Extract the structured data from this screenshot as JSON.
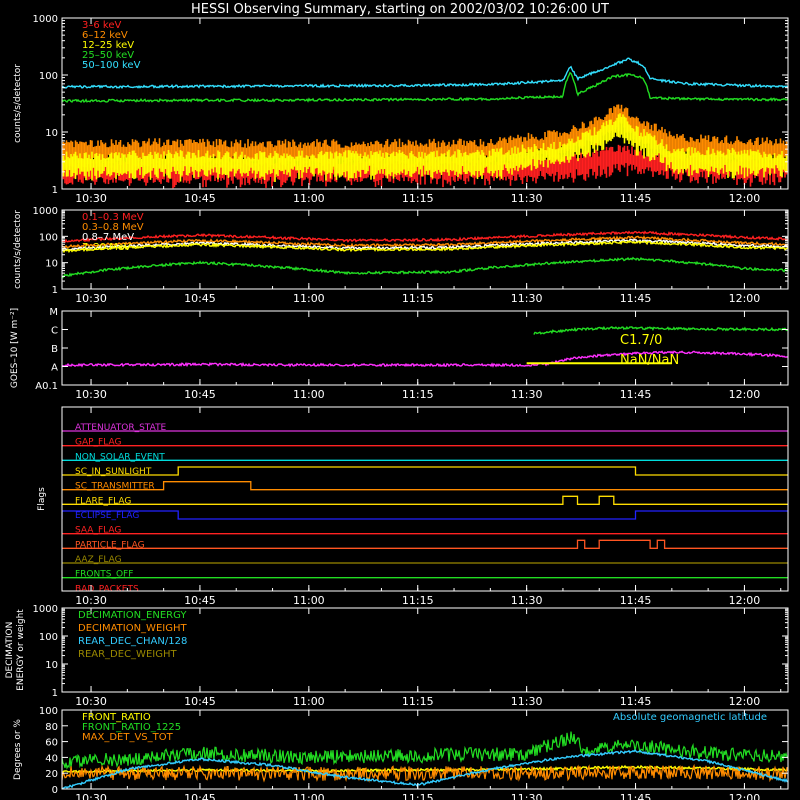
{
  "title": "HESSI Observing Summary, starting on 2002/03/02 10:26:00 UT",
  "time_axis": {
    "start": "10:26",
    "end": "12:06",
    "ticks": [
      "10:30",
      "10:45",
      "11:00",
      "11:15",
      "11:30",
      "11:45",
      "12:00"
    ]
  },
  "chart_data": [
    {
      "type": "line",
      "ylabel": "counts/s/detector",
      "scale": "log",
      "ylim": [
        1,
        1000
      ],
      "yticks": [
        "1",
        "10",
        "100",
        "1000"
      ],
      "legend": "top-left",
      "series": [
        {
          "name": "3–6 keV",
          "color": "#ff2020",
          "style": "band",
          "points": [
            [
              "10:26",
              2.2
            ],
            [
              "10:40",
              2.3
            ],
            [
              "10:55",
              2.2
            ],
            [
              "11:10",
              2.3
            ],
            [
              "11:25",
              2.3
            ],
            [
              "11:35",
              2.6
            ],
            [
              "11:40",
              3.2
            ],
            [
              "11:43",
              3.8
            ],
            [
              "11:47",
              3.0
            ],
            [
              "11:55",
              2.5
            ],
            [
              "12:06",
              2.4
            ]
          ]
        },
        {
          "name": "6–12 keV",
          "color": "#ff8c00",
          "style": "band",
          "points": [
            [
              "10:26",
              4.5
            ],
            [
              "10:40",
              4.8
            ],
            [
              "10:55",
              4.6
            ],
            [
              "11:10",
              4.7
            ],
            [
              "11:25",
              4.8
            ],
            [
              "11:35",
              7.0
            ],
            [
              "11:40",
              12.0
            ],
            [
              "11:43",
              21.0
            ],
            [
              "11:45",
              12.0
            ],
            [
              "11:50",
              6.0
            ],
            [
              "12:06",
              4.8
            ]
          ]
        },
        {
          "name": "12–25 keV",
          "color": "#ffff00",
          "style": "band",
          "points": [
            [
              "10:26",
              2.8
            ],
            [
              "10:40",
              3.0
            ],
            [
              "10:55",
              2.9
            ],
            [
              "11:10",
              3.0
            ],
            [
              "11:25",
              3.1
            ],
            [
              "11:35",
              4.5
            ],
            [
              "11:40",
              8.0
            ],
            [
              "11:43",
              14.0
            ],
            [
              "11:45",
              8.0
            ],
            [
              "11:50",
              3.5
            ],
            [
              "12:06",
              3.0
            ]
          ]
        },
        {
          "name": "25–50 keV",
          "color": "#22dd22",
          "style": "line",
          "points": [
            [
              "10:26",
              35
            ],
            [
              "10:40",
              36
            ],
            [
              "10:55",
              36
            ],
            [
              "11:10",
              37
            ],
            [
              "11:25",
              38
            ],
            [
              "11:35",
              42
            ],
            [
              "11:36",
              115
            ],
            [
              "11:37",
              45
            ],
            [
              "11:40",
              70
            ],
            [
              "11:42",
              95
            ],
            [
              "11:44",
              100
            ],
            [
              "11:46",
              90
            ],
            [
              "11:47",
              40
            ],
            [
              "11:52",
              38
            ],
            [
              "12:06",
              37
            ]
          ]
        },
        {
          "name": "50–100 keV",
          "color": "#33e0ff",
          "style": "line",
          "points": [
            [
              "10:26",
              62
            ],
            [
              "10:40",
              63
            ],
            [
              "10:55",
              64
            ],
            [
              "11:10",
              65
            ],
            [
              "11:25",
              68
            ],
            [
              "11:35",
              80
            ],
            [
              "11:36",
              140
            ],
            [
              "11:37",
              85
            ],
            [
              "11:40",
              120
            ],
            [
              "11:42",
              150
            ],
            [
              "11:44",
              190
            ],
            [
              "11:46",
              150
            ],
            [
              "11:47",
              85
            ],
            [
              "11:52",
              70
            ],
            [
              "12:06",
              62
            ]
          ]
        }
      ]
    },
    {
      "type": "line",
      "ylabel": "counts/s/detector",
      "scale": "log",
      "ylim": [
        1,
        1000
      ],
      "yticks": [
        "1",
        "10",
        "100",
        "1000"
      ],
      "legend": "top-left",
      "series": [
        {
          "name": "0.1–0.3 MeV",
          "color": "#ff2020",
          "style": "line",
          "points": [
            [
              "10:26",
              65
            ],
            [
              "10:45",
              110
            ],
            [
              "11:05",
              70
            ],
            [
              "11:20",
              75
            ],
            [
              "11:45",
              140
            ],
            [
              "12:00",
              90
            ],
            [
              "12:06",
              80
            ]
          ]
        },
        {
          "name": "0.3–0.8 MeV",
          "color": "#ff8c00",
          "style": "line",
          "points": [
            [
              "10:26",
              40
            ],
            [
              "10:45",
              70
            ],
            [
              "11:05",
              45
            ],
            [
              "11:20",
              48
            ],
            [
              "11:45",
              90
            ],
            [
              "12:00",
              55
            ],
            [
              "12:06",
              50
            ]
          ]
        },
        {
          "name": "0.8–7 MeV",
          "color": "#ffffff",
          "style": "line",
          "points": [
            [
              "10:26",
              32
            ],
            [
              "10:45",
              55
            ],
            [
              "11:05",
              36
            ],
            [
              "11:20",
              38
            ],
            [
              "11:45",
              70
            ],
            [
              "12:00",
              45
            ],
            [
              "12:06",
              40
            ]
          ]
        },
        {
          "name": "7–20 MeV",
          "color": "#ffff00",
          "style": "line",
          "points": [
            [
              "10:26",
              28
            ],
            [
              "10:45",
              48
            ],
            [
              "11:05",
              31
            ],
            [
              "11:20",
              33
            ],
            [
              "11:45",
              60
            ],
            [
              "12:00",
              38
            ],
            [
              "12:06",
              34
            ]
          ]
        },
        {
          "name": "",
          "color": "#22dd22",
          "style": "line",
          "points": [
            [
              "10:26",
              3.0
            ],
            [
              "10:45",
              10
            ],
            [
              "11:05",
              4.0
            ],
            [
              "11:20",
              4.5
            ],
            [
              "11:45",
              14
            ],
            [
              "12:00",
              6
            ],
            [
              "12:06",
              5
            ]
          ]
        }
      ]
    },
    {
      "type": "line",
      "ylabel": "GOES–10 [W m⁻²]",
      "scale": "log",
      "ylim": [
        0.1,
        1000
      ],
      "yticks": [
        "A0.1",
        "A",
        "B",
        "C",
        "M"
      ],
      "annotations": [
        "C1.7/0",
        "NaN/NaN"
      ],
      "series": [
        {
          "name": "",
          "color": "#22dd22",
          "style": "line",
          "points": [
            [
              "11:31",
              60
            ],
            [
              "11:37",
              100
            ],
            [
              "11:42",
              125
            ],
            [
              "11:50",
              110
            ],
            [
              "12:06",
              100
            ]
          ]
        },
        {
          "name": "",
          "color": "#ff30ff",
          "style": "line",
          "points": [
            [
              "10:26",
              1.2
            ],
            [
              "10:45",
              1.3
            ],
            [
              "11:00",
              1.2
            ],
            [
              "11:15",
              1.2
            ],
            [
              "11:30",
              1.2
            ],
            [
              "11:33",
              1.4
            ],
            [
              "11:37",
              3.0
            ],
            [
              "11:42",
              4.5
            ],
            [
              "11:50",
              6.0
            ],
            [
              "11:58",
              5.0
            ],
            [
              "12:06",
              3.6
            ]
          ]
        },
        {
          "name": "",
          "color": "#ffff00",
          "style": "segment",
          "points": [
            [
              "11:30",
              1.5
            ],
            [
              "11:50",
              1.5
            ]
          ]
        }
      ]
    },
    {
      "type": "line",
      "ylabel": "Flags",
      "series": [
        {
          "name": "ATTENUATOR_STATE",
          "color": "#dd33dd",
          "highs": []
        },
        {
          "name": "GAP_FLAG",
          "color": "#ff2222",
          "highs": []
        },
        {
          "name": "NON_SOLAR_EVENT",
          "color": "#00dddd",
          "highs": []
        },
        {
          "name": "SC_IN_SUNLIGHT",
          "color": "#ffdd00",
          "highs": [
            [
              "10:42",
              "11:45"
            ]
          ]
        },
        {
          "name": "SC_TRANSMITTER",
          "color": "#ff8c00",
          "highs": [
            [
              "10:40",
              "10:52"
            ]
          ]
        },
        {
          "name": "FLARE_FLAG",
          "color": "#ffdd00",
          "highs": [
            [
              "11:35",
              "11:37"
            ],
            [
              "11:40",
              "11:42"
            ]
          ]
        },
        {
          "name": "ECLIPSE_FLAG",
          "color": "#2222ff",
          "highs": [
            [
              "10:26",
              "10:42"
            ],
            [
              "11:45",
              "12:06"
            ]
          ]
        },
        {
          "name": "SAA_FLAG",
          "color": "#ff2222",
          "highs": []
        },
        {
          "name": "PARTICLE_FLAG",
          "color": "#ff5522",
          "highs": [
            [
              "11:37",
              "11:38"
            ],
            [
              "11:40",
              "11:47"
            ],
            [
              "11:48",
              "11:49"
            ]
          ]
        },
        {
          "name": "AAZ_FLAG",
          "color": "#998800",
          "highs": []
        },
        {
          "name": "FRONTS_OFF",
          "color": "#22dd22",
          "highs": []
        },
        {
          "name": "BAD_PACKETS",
          "color": "#ff2222",
          "highs": []
        }
      ]
    },
    {
      "type": "line",
      "ylabel": "DECIMATION ENERGY or weight",
      "scale": "log",
      "ylim": [
        1,
        1000
      ],
      "yticks": [
        "1",
        "10",
        "100",
        "1000"
      ],
      "legend": "top-left",
      "series": [
        {
          "name": "DECIMATION_ENERGY",
          "color": "#22dd22"
        },
        {
          "name": "DECIMATION_WEIGHT",
          "color": "#ff8c00"
        },
        {
          "name": "REAR_DEC_CHAN/128",
          "color": "#33ccff"
        },
        {
          "name": "REAR_DEC_WEIGHT",
          "color": "#998800"
        }
      ]
    },
    {
      "type": "line",
      "ylabel": "Degrees or %",
      "scale": "linear",
      "ylim": [
        0,
        100
      ],
      "yticks": [
        "0",
        "20",
        "40",
        "60",
        "80",
        "100"
      ],
      "legend": "top-left",
      "series": [
        {
          "name": "FRONT_RATIO",
          "color": "#ffff00",
          "style": "line",
          "points": [
            [
              "10:26",
              22
            ],
            [
              "10:45",
              24
            ],
            [
              "11:00",
              23
            ],
            [
              "11:15",
              24
            ],
            [
              "11:30",
              25
            ],
            [
              "11:45",
              28
            ],
            [
              "12:06",
              24
            ]
          ]
        },
        {
          "name": "FRONT_RATIO_1225",
          "color": "#22dd22",
          "style": "noisy",
          "points": [
            [
              "10:26",
              35
            ],
            [
              "10:35",
              38
            ],
            [
              "10:45",
              45
            ],
            [
              "11:00",
              40
            ],
            [
              "11:15",
              42
            ],
            [
              "11:30",
              45
            ],
            [
              "11:36",
              65
            ],
            [
              "11:38",
              50
            ],
            [
              "11:45",
              55
            ],
            [
              "11:55",
              45
            ],
            [
              "12:06",
              40
            ]
          ]
        },
        {
          "name": "MAX_DET_VS_TOT",
          "color": "#ff8c00",
          "style": "noisy",
          "points": [
            [
              "10:26",
              20
            ],
            [
              "10:45",
              20
            ],
            [
              "11:00",
              19
            ],
            [
              "11:15",
              20
            ],
            [
              "11:30",
              20
            ],
            [
              "11:45",
              21
            ],
            [
              "12:06",
              20
            ]
          ]
        },
        {
          "name": "Absolute geomagnetic latitude",
          "color": "#33ccff",
          "style": "line",
          "points": [
            [
              "10:26",
              0
            ],
            [
              "10:35",
              25
            ],
            [
              "10:45",
              38
            ],
            [
              "10:55",
              30
            ],
            [
              "11:05",
              15
            ],
            [
              "11:15",
              5
            ],
            [
              "11:25",
              25
            ],
            [
              "11:35",
              40
            ],
            [
              "11:45",
              48
            ],
            [
              "11:55",
              35
            ],
            [
              "12:06",
              10
            ]
          ]
        }
      ]
    }
  ]
}
